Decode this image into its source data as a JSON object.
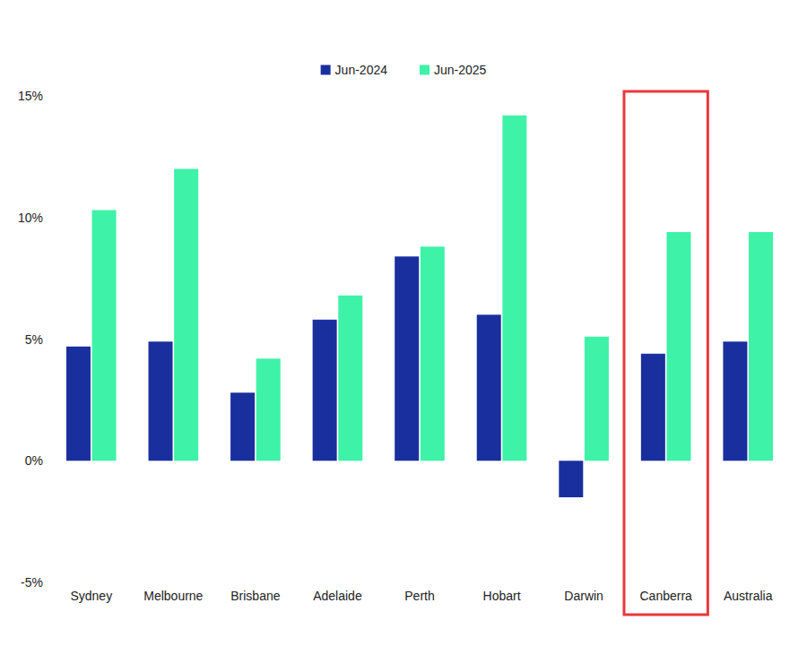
{
  "chart_data": {
    "type": "bar",
    "categories": [
      "Sydney",
      "Melbourne",
      "Brisbane",
      "Adelaide",
      "Perth",
      "Hobart",
      "Darwin",
      "Canberra",
      "Australia"
    ],
    "series": [
      {
        "name": "Jun-2024",
        "color": "#1a2f9e",
        "values": [
          4.7,
          4.9,
          2.8,
          5.8,
          8.4,
          6.0,
          -1.5,
          4.4,
          4.9
        ]
      },
      {
        "name": "Jun-2025",
        "color": "#3ef2a8",
        "values": [
          10.3,
          12.0,
          4.2,
          6.8,
          8.8,
          14.2,
          5.1,
          9.4,
          9.4
        ]
      }
    ],
    "ylim": [
      -5,
      15
    ],
    "yticks": [
      {
        "value": -5,
        "label": "-5%"
      },
      {
        "value": 0,
        "label": "0%"
      },
      {
        "value": 5,
        "label": "5%"
      },
      {
        "value": 10,
        "label": "10%"
      },
      {
        "value": 15,
        "label": "15%"
      }
    ],
    "grid": false,
    "legend": "top",
    "annotations": [
      {
        "category": "Canberra",
        "shape": "box",
        "color": "#e8383d"
      }
    ]
  }
}
